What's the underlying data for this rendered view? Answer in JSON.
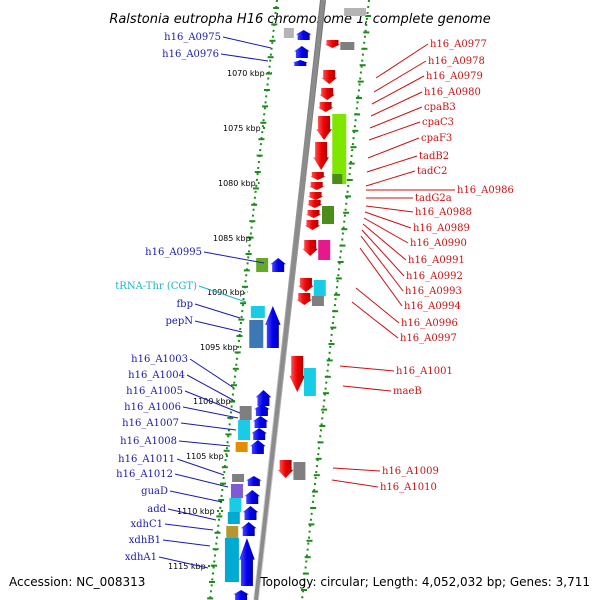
{
  "title": "Ralstonia eutropha H16 chromosome 1, complete genome",
  "accession": "Accession: NC_008313",
  "topology": "Topology: circular; Length: 4,052,032 bp; Genes: 3,711",
  "colors": {
    "left_label": "#1a1ab4",
    "right_label": "#cc1111",
    "trna_label": "#1ab4c8",
    "backbone": "#8c8c8c",
    "ruler": "#1a8c1a"
  },
  "kbp_markers": [
    "1070 kbp",
    "1075 kbp",
    "1080 kbp",
    "1085 kbp",
    "1090 kbp",
    "1095 kbp",
    "1100 kbp",
    "1105 kbp",
    "1110 kbp",
    "1115 kbp"
  ],
  "left_labels": [
    {
      "text": "h16_A0975",
      "kind": "gene"
    },
    {
      "text": "h16_A0976",
      "kind": "gene"
    },
    {
      "text": "h16_A0995",
      "kind": "gene"
    },
    {
      "text": "tRNA-Thr (CGT)",
      "kind": "trna"
    },
    {
      "text": "fbp",
      "kind": "gene"
    },
    {
      "text": "pepN",
      "kind": "gene"
    },
    {
      "text": "h16_A1003",
      "kind": "gene"
    },
    {
      "text": "h16_A1004",
      "kind": "gene"
    },
    {
      "text": "h16_A1005",
      "kind": "gene"
    },
    {
      "text": "h16_A1006",
      "kind": "gene"
    },
    {
      "text": "h16_A1007",
      "kind": "gene"
    },
    {
      "text": "h16_A1008",
      "kind": "gene"
    },
    {
      "text": "h16_A1011",
      "kind": "gene"
    },
    {
      "text": "h16_A1012",
      "kind": "gene"
    },
    {
      "text": "guaD",
      "kind": "gene"
    },
    {
      "text": "add",
      "kind": "gene"
    },
    {
      "text": "xdhC1",
      "kind": "gene"
    },
    {
      "text": "xdhB1",
      "kind": "gene"
    },
    {
      "text": "xdhA1",
      "kind": "gene"
    }
  ],
  "right_labels": [
    {
      "text": "h16_A0977"
    },
    {
      "text": "h16_A0978"
    },
    {
      "text": "h16_A0979"
    },
    {
      "text": "h16_A0980"
    },
    {
      "text": "cpaB3"
    },
    {
      "text": "cpaC3"
    },
    {
      "text": "cpaF3"
    },
    {
      "text": "tadB2"
    },
    {
      "text": "tadC2"
    },
    {
      "text": "h16_A0986"
    },
    {
      "text": "tadG2a"
    },
    {
      "text": "h16_A0988"
    },
    {
      "text": "h16_A0989"
    },
    {
      "text": "h16_A0990"
    },
    {
      "text": "h16_A0991"
    },
    {
      "text": "h16_A0992"
    },
    {
      "text": "h16_A0993"
    },
    {
      "text": "h16_A0994"
    },
    {
      "text": "h16_A0996"
    },
    {
      "text": "h16_A0997"
    },
    {
      "text": "h16_A1001"
    },
    {
      "text": "maeB"
    },
    {
      "text": "h16_A1009"
    },
    {
      "text": "h16_A1010"
    }
  ],
  "features": {
    "forward": [
      {
        "name": "h16_A0975",
        "color": "#0000ee",
        "shape": "box"
      },
      {
        "name": "h16_A0976",
        "color": "#0000ee",
        "shape": "arrow"
      },
      {
        "name": "h16_A0995",
        "color": "#0000ee",
        "shape": "arrow"
      },
      {
        "name": "fbp",
        "color": "#0000ee",
        "shape": "arrow"
      },
      {
        "name": "pepN",
        "color": "#0000ee",
        "shape": "arrow"
      },
      {
        "name": "h16_A1003",
        "color": "#0000ee",
        "shape": "arrow"
      },
      {
        "name": "h16_A1004",
        "color": "#0000ee",
        "shape": "arrow"
      },
      {
        "name": "h16_A1005",
        "color": "#0000ee",
        "shape": "arrow"
      },
      {
        "name": "h16_A1006",
        "color": "#0000ee",
        "shape": "arrow"
      },
      {
        "name": "h16_A1007",
        "color": "#0000ee",
        "shape": "arrow"
      },
      {
        "name": "h16_A1008",
        "color": "#0000ee",
        "shape": "arrow"
      },
      {
        "name": "h16_A1011",
        "color": "#0000ee",
        "shape": "arrow"
      },
      {
        "name": "h16_A1012",
        "color": "#0000ee",
        "shape": "arrow"
      },
      {
        "name": "guaD",
        "color": "#0000ee",
        "shape": "arrow"
      },
      {
        "name": "add",
        "color": "#0000ee",
        "shape": "arrow"
      },
      {
        "name": "xdhC1",
        "color": "#0000ee",
        "shape": "arrow"
      },
      {
        "name": "xdhB1",
        "color": "#0000ee",
        "shape": "arrow"
      },
      {
        "name": "xdhA1",
        "color": "#0000ee",
        "shape": "arrow"
      }
    ],
    "reverse": [
      {
        "name": "h16_A0977",
        "color": "#ee0000",
        "shape": "arrow"
      },
      {
        "name": "h16_A0978",
        "color": "#ee0000",
        "shape": "arrow"
      },
      {
        "name": "h16_A0979",
        "color": "#ee0000",
        "shape": "arrow"
      },
      {
        "name": "h16_A0980",
        "color": "#ee0000",
        "shape": "arrow"
      },
      {
        "name": "cpaB3",
        "color": "#ee0000",
        "shape": "arrow"
      },
      {
        "name": "cpaC3",
        "color": "#ee0000",
        "shape": "arrow"
      },
      {
        "name": "cpaF3",
        "color": "#ee0000",
        "shape": "arrow"
      },
      {
        "name": "tadB2",
        "color": "#ee0000",
        "shape": "arrow"
      },
      {
        "name": "tadC2",
        "color": "#ee0000",
        "shape": "arrow"
      },
      {
        "name": "h16_A0986",
        "color": "#ee0000",
        "shape": "arrow"
      },
      {
        "name": "tadG2a",
        "color": "#ee0000",
        "shape": "arrow"
      },
      {
        "name": "h16_A0988",
        "color": "#ee0000",
        "shape": "arrow"
      },
      {
        "name": "h16_A0989",
        "color": "#ee0000",
        "shape": "arrow"
      },
      {
        "name": "h16_A0990",
        "color": "#ee0000",
        "shape": "arrow"
      },
      {
        "name": "h16_A0991",
        "color": "#ee0000",
        "shape": "arrow"
      },
      {
        "name": "h16_A0992",
        "color": "#ee0000",
        "shape": "arrow"
      },
      {
        "name": "h16_A0993",
        "color": "#ee0000",
        "shape": "arrow"
      },
      {
        "name": "h16_A0994",
        "color": "#ee0000",
        "shape": "arrow"
      },
      {
        "name": "h16_A0996",
        "color": "#ee0000",
        "shape": "arrow"
      },
      {
        "name": "h16_A0997",
        "color": "#ee0000",
        "shape": "arrow"
      },
      {
        "name": "h16_A1001",
        "color": "#ee0000",
        "shape": "arrow"
      },
      {
        "name": "maeB",
        "color": "#ee0000",
        "shape": "arrow"
      },
      {
        "name": "h16_A1009",
        "color": "#ee0000",
        "shape": "arrow"
      },
      {
        "name": "h16_A1010",
        "color": "#ee0000",
        "shape": "arrow"
      }
    ]
  },
  "cog_colors": [
    "#7fe600",
    "#4c8c1a",
    "#e6198c",
    "#19cce6",
    "#7f7f7f",
    "#b4b4b4",
    "#3c78b4",
    "#00aad2",
    "#e68c00",
    "#7f5ad2",
    "#b49632",
    "#64aa28"
  ]
}
